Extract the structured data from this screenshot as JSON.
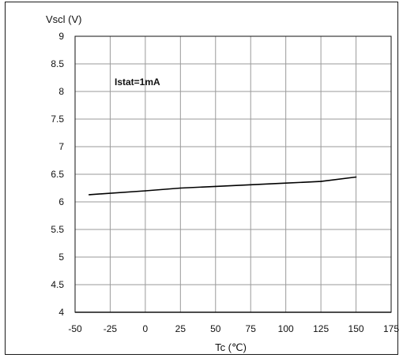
{
  "chart_data": {
    "type": "line",
    "title": "",
    "ylabel": "Vscl (V)",
    "xlabel": "Tc (℃)",
    "annotation": "Istat=1mA",
    "xlim": [
      -50,
      175
    ],
    "ylim": [
      4,
      9
    ],
    "xticks": [
      -50,
      -25,
      0,
      25,
      50,
      75,
      100,
      125,
      150,
      175
    ],
    "yticks": [
      4,
      4.5,
      5,
      5.5,
      6,
      6.5,
      7,
      7.5,
      8,
      8.5,
      9
    ],
    "grid": true,
    "series": [
      {
        "color": "#000000",
        "x": [
          -40,
          0,
          25,
          50,
          75,
          100,
          125,
          150
        ],
        "y": [
          6.13,
          6.2,
          6.25,
          6.28,
          6.31,
          6.34,
          6.37,
          6.45
        ]
      }
    ]
  }
}
